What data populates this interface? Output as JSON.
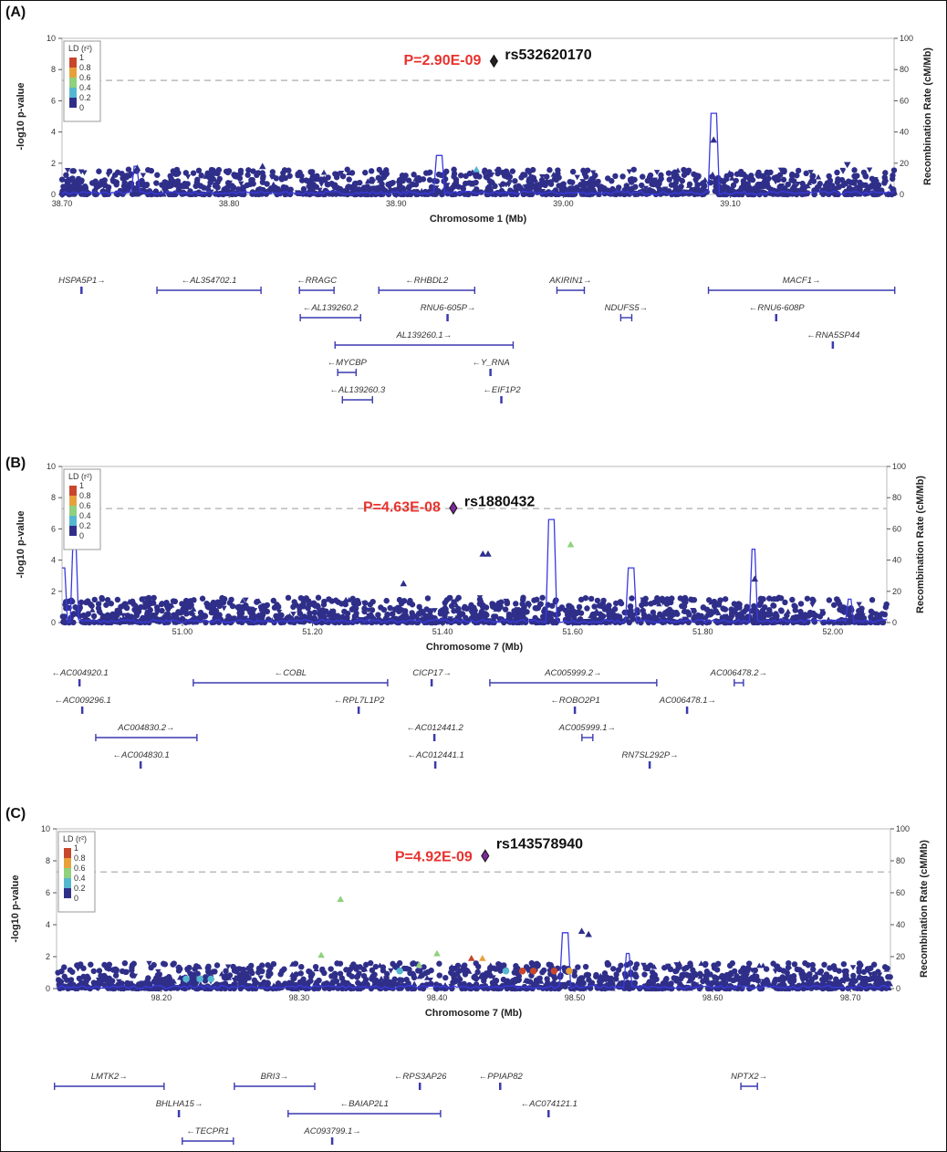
{
  "ld_legend": {
    "title": "LD (r²)",
    "labels": [
      "1",
      "0.8",
      "0.6",
      "0.4",
      "0.2",
      "0"
    ],
    "colors": [
      "#c8462b",
      "#e8a13a",
      "#8fd17d",
      "#55b8d0",
      "#2f2f8a"
    ]
  },
  "point_color_default": "#2f2f8a",
  "recomb_color": "#3a3ae0",
  "chart_data": [
    {
      "panel_label": "(A)",
      "type": "scatter",
      "xlabel": "Chromosome 1 (Mb)",
      "ylabel": "-log10 p-value",
      "y2label": "Recombination Rate (cM/Mb)",
      "xlim": [
        38.7,
        39.198
      ],
      "ylim": [
        0,
        10
      ],
      "y2lim": [
        0,
        100
      ],
      "xticks": [
        "38.70",
        "38.80",
        "38.90",
        "39.00",
        "39.10"
      ],
      "yticks": [
        "0",
        "2",
        "4",
        "6",
        "8",
        "10"
      ],
      "y2ticks": [
        "0",
        "20",
        "40",
        "60",
        "80",
        "100"
      ],
      "significance_line": 7.3,
      "lead_snp": {
        "id": "rs532620170",
        "p_label": "P=2.90E-09",
        "x": 38.9585,
        "y": 8.54,
        "color": "#222222"
      },
      "notable_points": [
        {
          "x": 38.948,
          "y": 1.6,
          "r2": 0.2,
          "shape": "triangle"
        },
        {
          "x": 39.09,
          "y": 3.5,
          "r2": 0,
          "shape": "triangle"
        },
        {
          "x": 38.745,
          "y": 1.7,
          "r2": 0,
          "shape": "triangle"
        },
        {
          "x": 38.82,
          "y": 1.8,
          "r2": 0,
          "shape": "triangle"
        },
        {
          "x": 39.17,
          "y": 1.9,
          "r2": 0,
          "shape": "triangle-down"
        }
      ],
      "recomb_peaks": [
        [
          38.744,
          18
        ],
        [
          38.926,
          25
        ],
        [
          39.09,
          52
        ]
      ],
      "genes": [
        {
          "label": "HSPA5P1→",
          "start": 38.7115,
          "end": 38.7125,
          "row": 0
        },
        {
          "label": "←AL354702.1",
          "start": 38.7568,
          "end": 38.8191,
          "row": 0
        },
        {
          "label": "←RRAGC",
          "start": 38.8421,
          "end": 38.8628,
          "row": 0
        },
        {
          "label": "←RHBDL2",
          "start": 38.8896,
          "end": 38.947,
          "row": 0
        },
        {
          "label": "AKIRIN1→",
          "start": 38.9962,
          "end": 39.0126,
          "row": 0
        },
        {
          "label": "MACF1→",
          "start": 39.0869,
          "end": 39.1984,
          "row": 0
        },
        {
          "label": "←AL139260.2",
          "start": 38.8426,
          "end": 38.8787,
          "row": 1
        },
        {
          "label": "RNU6-605P→",
          "start": 38.9306,
          "end": 38.9312,
          "row": 1
        },
        {
          "label": "NDUFS5→",
          "start": 39.0344,
          "end": 39.041,
          "row": 1
        },
        {
          "label": "←RNU6-608P",
          "start": 39.1273,
          "end": 39.1279,
          "row": 1
        },
        {
          "label": "AL139260.1→",
          "start": 38.8634,
          "end": 38.97,
          "row": 2
        },
        {
          "label": "←RNA5SP44",
          "start": 39.1612,
          "end": 39.1618,
          "row": 2
        },
        {
          "label": "←MYCBP",
          "start": 38.865,
          "end": 38.876,
          "row": 3
        },
        {
          "label": "←Y_RNA",
          "start": 38.9563,
          "end": 38.9569,
          "row": 3
        },
        {
          "label": "←AL139260.3",
          "start": 38.8678,
          "end": 38.8858,
          "row": 4
        },
        {
          "label": "←EIF1P2",
          "start": 38.9628,
          "end": 38.9634,
          "row": 4
        }
      ]
    },
    {
      "panel_label": "(B)",
      "type": "scatter",
      "xlabel": "Chromosome 7 (Mb)",
      "ylabel": "-log10 p-value",
      "y2label": "Recombination Rate (cM/Mb)",
      "xlim": [
        50.815,
        52.083
      ],
      "ylim": [
        0,
        10
      ],
      "y2lim": [
        0,
        100
      ],
      "xticks": [
        "51.00",
        "51.20",
        "51.40",
        "51.60",
        "51.80",
        "52.00"
      ],
      "yticks": [
        "0",
        "2",
        "4",
        "6",
        "8",
        "10"
      ],
      "y2ticks": [
        "0",
        "20",
        "40",
        "60",
        "80",
        "100"
      ],
      "significance_line": 7.3,
      "lead_snp": {
        "id": "rs1880432",
        "p_label": "P=4.63E-08",
        "x": 51.4166,
        "y": 7.34,
        "color": "#7a2a9a"
      },
      "notable_points": [
        {
          "x": 51.597,
          "y": 5.0,
          "r2": 0.4,
          "shape": "triangle"
        },
        {
          "x": 51.462,
          "y": 4.4,
          "r2": 0,
          "shape": "triangle"
        },
        {
          "x": 51.47,
          "y": 4.4,
          "r2": 0,
          "shape": "triangle"
        },
        {
          "x": 51.34,
          "y": 2.5,
          "r2": 0,
          "shape": "triangle"
        },
        {
          "x": 51.88,
          "y": 2.8,
          "r2": 0,
          "shape": "triangle"
        }
      ],
      "recomb_peaks": [
        [
          50.817,
          35
        ],
        [
          50.834,
          55
        ],
        [
          51.567,
          66
        ],
        [
          51.69,
          35
        ],
        [
          51.878,
          47
        ],
        [
          52.025,
          15
        ]
      ],
      "genes": [
        {
          "label": "←AC004920.1",
          "start": 50.8415,
          "end": 50.8425,
          "row": 0
        },
        {
          "label": "←COBL",
          "start": 51.0168,
          "end": 51.3156,
          "row": 0
        },
        {
          "label": "CICP17→",
          "start": 51.3829,
          "end": 51.3839,
          "row": 0
        },
        {
          "label": "AC005999.2→",
          "start": 51.4727,
          "end": 51.7293,
          "row": 0
        },
        {
          "label": "AC006478.2→",
          "start": 51.8485,
          "end": 51.8626,
          "row": 0
        },
        {
          "label": "←AC009296.1",
          "start": 50.8457,
          "end": 50.8463,
          "row": 1
        },
        {
          "label": "←RPL7L1P2",
          "start": 51.2707,
          "end": 51.2713,
          "row": 1
        },
        {
          "label": "←ROBO2P1",
          "start": 51.6031,
          "end": 51.6037,
          "row": 1
        },
        {
          "label": "AC006478.1→",
          "start": 51.7756,
          "end": 51.7786,
          "row": 1
        },
        {
          "label": "AC004830.2→",
          "start": 50.8668,
          "end": 51.0224,
          "row": 2
        },
        {
          "label": "←AC012441.2",
          "start": 51.3871,
          "end": 51.3877,
          "row": 2
        },
        {
          "label": "AC005999.1→",
          "start": 51.6143,
          "end": 51.6311,
          "row": 2
        },
        {
          "label": "←AC004830.1",
          "start": 50.9355,
          "end": 50.9361,
          "row": 3
        },
        {
          "label": "←AC012441.1",
          "start": 51.3885,
          "end": 51.3891,
          "row": 3
        },
        {
          "label": "RN7SL292P→",
          "start": 51.7181,
          "end": 51.7187,
          "row": 3
        }
      ]
    },
    {
      "panel_label": "(C)",
      "type": "scatter",
      "xlabel": "Chromosome 7 (Mb)",
      "ylabel": "-log10 p-value",
      "y2label": "Recombination Rate (cM/Mb)",
      "xlim": [
        98.124,
        98.729
      ],
      "ylim": [
        0,
        10
      ],
      "y2lim": [
        0,
        100
      ],
      "xticks": [
        "98.20",
        "98.30",
        "98.40",
        "98.50",
        "98.60",
        "98.70"
      ],
      "yticks": [
        "0",
        "2",
        "4",
        "6",
        "8",
        "10"
      ],
      "y2ticks": [
        "0",
        "20",
        "40",
        "60",
        "80",
        "100"
      ],
      "significance_line": 7.3,
      "lead_snp": {
        "id": "rs143578940",
        "p_label": "P=4.92E-09",
        "x": 98.435,
        "y": 8.31,
        "color": "#7a2a9a"
      },
      "notable_points": [
        {
          "x": 98.33,
          "y": 5.6,
          "r2": 0.4,
          "shape": "triangle"
        },
        {
          "x": 98.316,
          "y": 2.1,
          "r2": 0.4,
          "shape": "triangle"
        },
        {
          "x": 98.387,
          "y": 1.5,
          "r2": 0.4,
          "shape": "triangle"
        },
        {
          "x": 98.4,
          "y": 2.2,
          "r2": 0.4,
          "shape": "triangle"
        },
        {
          "x": 98.425,
          "y": 1.9,
          "r2": 0.8,
          "shape": "triangle"
        },
        {
          "x": 98.433,
          "y": 1.9,
          "r2": 0.6,
          "shape": "triangle"
        },
        {
          "x": 98.462,
          "y": 1.1,
          "r2": 0.8,
          "shape": "circle"
        },
        {
          "x": 98.47,
          "y": 1.1,
          "r2": 0.8,
          "shape": "circle"
        },
        {
          "x": 98.485,
          "y": 1.1,
          "r2": 0.8,
          "shape": "circle"
        },
        {
          "x": 98.496,
          "y": 1.1,
          "r2": 0.6,
          "shape": "circle"
        },
        {
          "x": 98.373,
          "y": 1.1,
          "r2": 0.2,
          "shape": "circle"
        },
        {
          "x": 98.45,
          "y": 1.1,
          "r2": 0.2,
          "shape": "circle"
        },
        {
          "x": 98.218,
          "y": 0.6,
          "r2": 0.2,
          "shape": "circle"
        },
        {
          "x": 98.228,
          "y": 0.6,
          "r2": 0.2,
          "shape": "circle"
        },
        {
          "x": 98.236,
          "y": 0.6,
          "r2": 0.2,
          "shape": "circle"
        },
        {
          "x": 98.505,
          "y": 3.6,
          "r2": 0,
          "shape": "triangle"
        },
        {
          "x": 98.51,
          "y": 3.4,
          "r2": 0,
          "shape": "triangle"
        }
      ],
      "recomb_peaks": [
        [
          98.493,
          35
        ],
        [
          98.538,
          22
        ]
      ],
      "genes": [
        {
          "label": "LMTK2→",
          "start": 98.1225,
          "end": 98.202,
          "row": 0
        },
        {
          "label": "BRI3→",
          "start": 98.253,
          "end": 98.3113,
          "row": 0
        },
        {
          "label": "←RPS3AP26",
          "start": 98.3874,
          "end": 98.388,
          "row": 0
        },
        {
          "label": "←PPIAP82",
          "start": 98.4457,
          "end": 98.4463,
          "row": 0
        },
        {
          "label": "NPTX2→",
          "start": 98.6205,
          "end": 98.6325,
          "row": 0
        },
        {
          "label": "BHLHA15→",
          "start": 98.2126,
          "end": 98.2132,
          "row": 1
        },
        {
          "label": "←BAIAP2L1",
          "start": 98.292,
          "end": 98.4026,
          "row": 1
        },
        {
          "label": "←AC074121.1",
          "start": 98.4808,
          "end": 98.4814,
          "row": 1
        },
        {
          "label": "←TECPR1",
          "start": 98.2152,
          "end": 98.2523,
          "row": 2
        },
        {
          "label": "AC093799.1→",
          "start": 98.3238,
          "end": 98.3244,
          "row": 2
        }
      ]
    }
  ]
}
